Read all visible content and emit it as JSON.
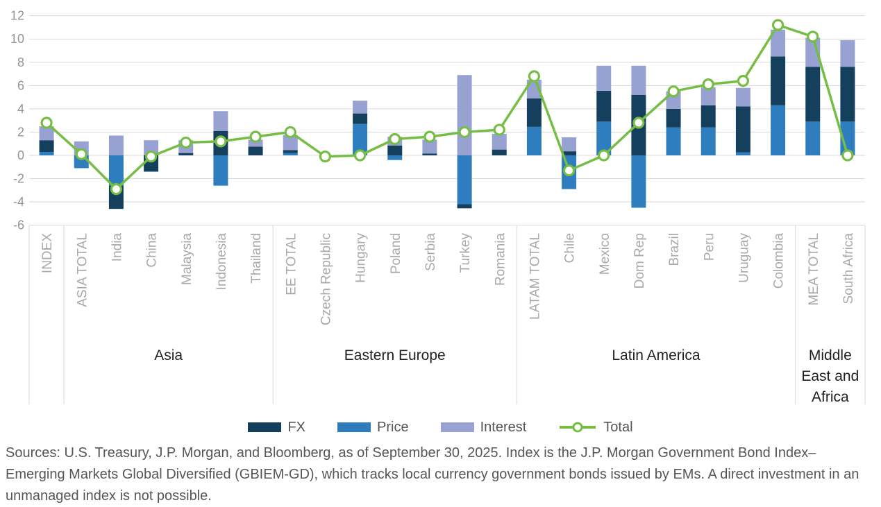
{
  "chart_data": {
    "type": "bar",
    "subtype": "stacked-bars-with-total-line",
    "title": "",
    "ylim": [
      -6,
      12
    ],
    "yticks": [
      12,
      10,
      8,
      6,
      4,
      2,
      0,
      -2,
      -4,
      -6
    ],
    "grid": true,
    "legend_position": "bottom",
    "grid_color": "#d9d9d9",
    "tick_label_color": "#939598",
    "category_label_color": "#a7a9ac",
    "group_label_color": "#1f1f1f",
    "categories": [
      "INDEX",
      "ASIA TOTAL",
      "India",
      "China",
      "Malaysia",
      "Indonesia",
      "Thailand",
      "EE TOTAL",
      "Czech Republic",
      "Hungary",
      "Poland",
      "Serbia",
      "Turkey",
      "Romania",
      "LATAM TOTAL",
      "Chile",
      "Mexico",
      "Dom Rep",
      "Brazil",
      "Peru",
      "Uruguay",
      "Colombia",
      "MEA TOTAL",
      "South Africa"
    ],
    "groups": [
      {
        "label": "",
        "lines": [],
        "span": 1
      },
      {
        "label": "Asia",
        "lines": [
          "Asia"
        ],
        "span": 6
      },
      {
        "label": "Eastern Europe",
        "lines": [
          "Eastern Europe"
        ],
        "span": 7
      },
      {
        "label": "Latin America",
        "lines": [
          "Latin America"
        ],
        "span": 8
      },
      {
        "label": "Middle East and Africa",
        "lines": [
          "Middle",
          "East and",
          "Africa"
        ],
        "span": 2
      }
    ],
    "stack_order": [
      "Price",
      "FX",
      "Interest"
    ],
    "series": [
      {
        "name": "FX",
        "color": "#14405e",
        "values": [
          1.0,
          0,
          -2.0,
          -1.4,
          0.2,
          2.1,
          0.75,
          0.25,
          0,
          0.9,
          0.85,
          0.15,
          -0.35,
          0.5,
          2.45,
          0.35,
          2.65,
          5.2,
          1.6,
          1.9,
          3.95,
          4.2,
          4.7,
          4.7
        ]
      },
      {
        "name": "Price",
        "color": "#2e7dbf",
        "values": [
          0.3,
          -1.1,
          -2.6,
          0,
          0,
          -2.6,
          0,
          0.2,
          0,
          2.7,
          -0.4,
          0,
          -4.2,
          0,
          2.45,
          -2.9,
          2.9,
          -4.5,
          2.4,
          2.4,
          0.25,
          4.3,
          2.9,
          2.9
        ]
      },
      {
        "name": "Interest",
        "color": "#97a2d3",
        "values": [
          1.2,
          1.2,
          1.7,
          1.3,
          1.1,
          1.7,
          0.6,
          1.3,
          0,
          1.1,
          0.75,
          1.2,
          6.9,
          1.35,
          1.6,
          1.2,
          2.15,
          2.5,
          1.5,
          1.55,
          1.6,
          2.3,
          2.5,
          2.3
        ]
      }
    ],
    "total": {
      "name": "Total",
      "color": "#76bd45",
      "marker": "circle",
      "values": [
        2.8,
        0.1,
        -2.9,
        -0.1,
        1.1,
        1.2,
        1.6,
        2.0,
        -0.1,
        0.0,
        1.4,
        1.6,
        2.0,
        2.2,
        6.8,
        -1.3,
        0.0,
        2.8,
        5.5,
        6.1,
        6.4,
        11.2,
        10.2,
        0.0
      ]
    }
  },
  "source": {
    "text": "Sources: U.S. Treasury, J.P. Morgan, and Bloomberg, as of September 30, 2025. Index is the J.P. Morgan Government Bond Index–Emerging Markets Global Diversified (GBIEM-GD), which tracks local currency government bonds issued by EMs. A direct investment in an unmanaged index is not possible."
  }
}
